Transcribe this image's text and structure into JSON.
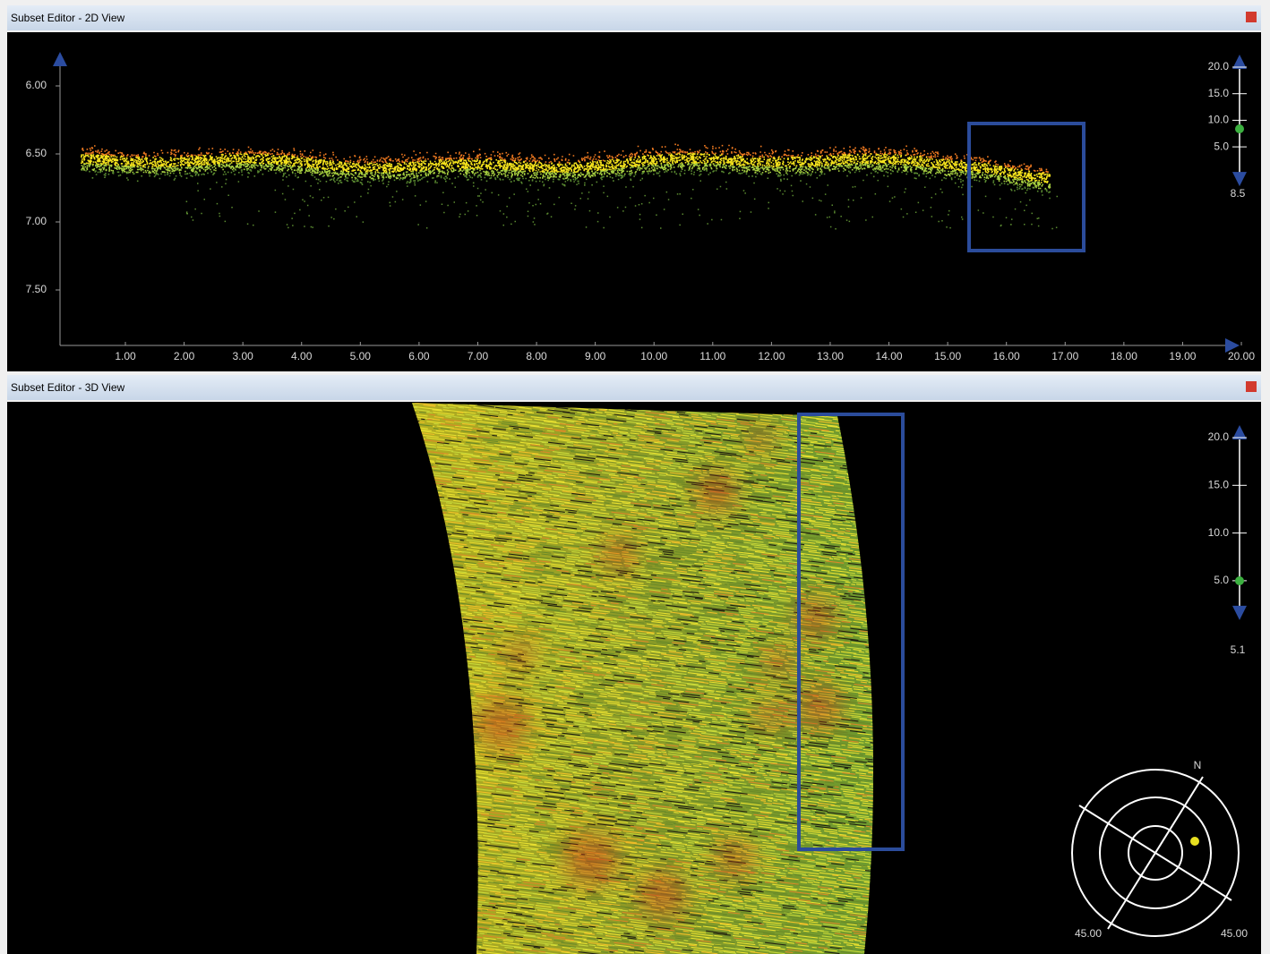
{
  "windows": [
    {
      "title": "Subset Editor - 2D View",
      "y_ticks": [
        "6.00",
        "6.50",
        "7.00",
        "7.50"
      ],
      "x_ticks": [
        "1.00",
        "2.00",
        "3.00",
        "4.00",
        "5.00",
        "6.00",
        "7.00",
        "8.00",
        "9.00",
        "10.00",
        "11.00",
        "12.00",
        "13.00",
        "14.00",
        "15.00",
        "16.00",
        "17.00",
        "18.00",
        "19.00",
        "20.00"
      ],
      "scale": {
        "ticks": [
          "20.0",
          "15.0",
          "10.0",
          "5.0"
        ],
        "value": "8.5"
      }
    },
    {
      "title": "Subset Editor - 3D View",
      "scale": {
        "ticks": [
          "20.0",
          "15.0",
          "10.0",
          "5.0"
        ],
        "value": "5.1"
      },
      "compass": {
        "north": "N",
        "labels": [
          "45.00",
          "45.00"
        ]
      }
    }
  ]
}
